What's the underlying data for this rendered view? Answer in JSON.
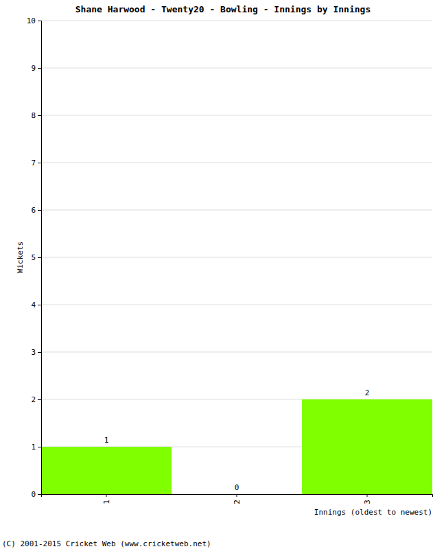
{
  "chart_data": {
    "type": "bar",
    "title": "Shane Harwood - Twenty20 - Bowling - Innings by Innings",
    "x_label": "Innings (oldest to newest)",
    "y_label": "Wickets",
    "source": "(C) 2001-2015 Cricket Web (www.cricketweb.net)",
    "categories": [
      "1",
      "2",
      "3"
    ],
    "values": [
      1,
      0,
      2
    ],
    "color": "#80ff00",
    "ylim": [
      0,
      10
    ],
    "yticks": [
      0,
      1,
      2,
      3,
      4,
      5,
      6,
      7,
      8,
      9,
      10
    ],
    "grid": true,
    "data_labels": true
  }
}
